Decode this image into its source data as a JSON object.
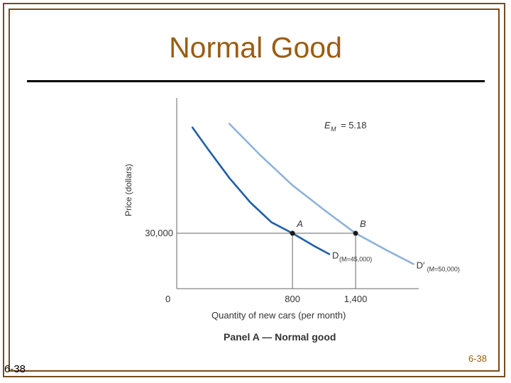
{
  "slide": {
    "title": "Normal Good",
    "page_number_right": "6-38",
    "page_number_left": "6-38",
    "colors": {
      "frame": "#7a4a1c",
      "title": "#9a5d12"
    }
  },
  "chart_data": {
    "type": "line",
    "title": "Panel A — Normal good",
    "xlabel": "Quantity of new cars (per month)",
    "ylabel": "Price (dollars)",
    "x_ticks": [
      "800",
      "1,400"
    ],
    "y_ticks": [
      "30,000"
    ],
    "origin_label": "0",
    "elasticity_label": "E",
    "elasticity_subscript": "M",
    "elasticity_value": "= 5.18",
    "series": [
      {
        "name": "D",
        "label_sub": "(M=45,000)",
        "color": "#1f5fa6",
        "points": [
          [
            -150,
            38600
          ],
          [
            0,
            36800
          ],
          [
            200,
            34500
          ],
          [
            400,
            32500
          ],
          [
            600,
            30900
          ],
          [
            800,
            30000
          ],
          [
            1000,
            29000
          ],
          [
            1150,
            28300
          ]
        ]
      },
      {
        "name": "D′",
        "label_sub": "(M=50,000)",
        "color": "#8fb3d9",
        "points": [
          [
            200,
            38900
          ],
          [
            500,
            36300
          ],
          [
            800,
            33900
          ],
          [
            1100,
            31900
          ],
          [
            1400,
            30000
          ],
          [
            1700,
            28600
          ],
          [
            1950,
            27500
          ]
        ]
      }
    ],
    "points": [
      {
        "label": "A",
        "x": 800,
        "y": 30000
      },
      {
        "label": "B",
        "x": 1400,
        "y": 30000
      }
    ],
    "xlim": [
      -300,
      2000
    ],
    "ylim": [
      25500,
      41000
    ]
  }
}
